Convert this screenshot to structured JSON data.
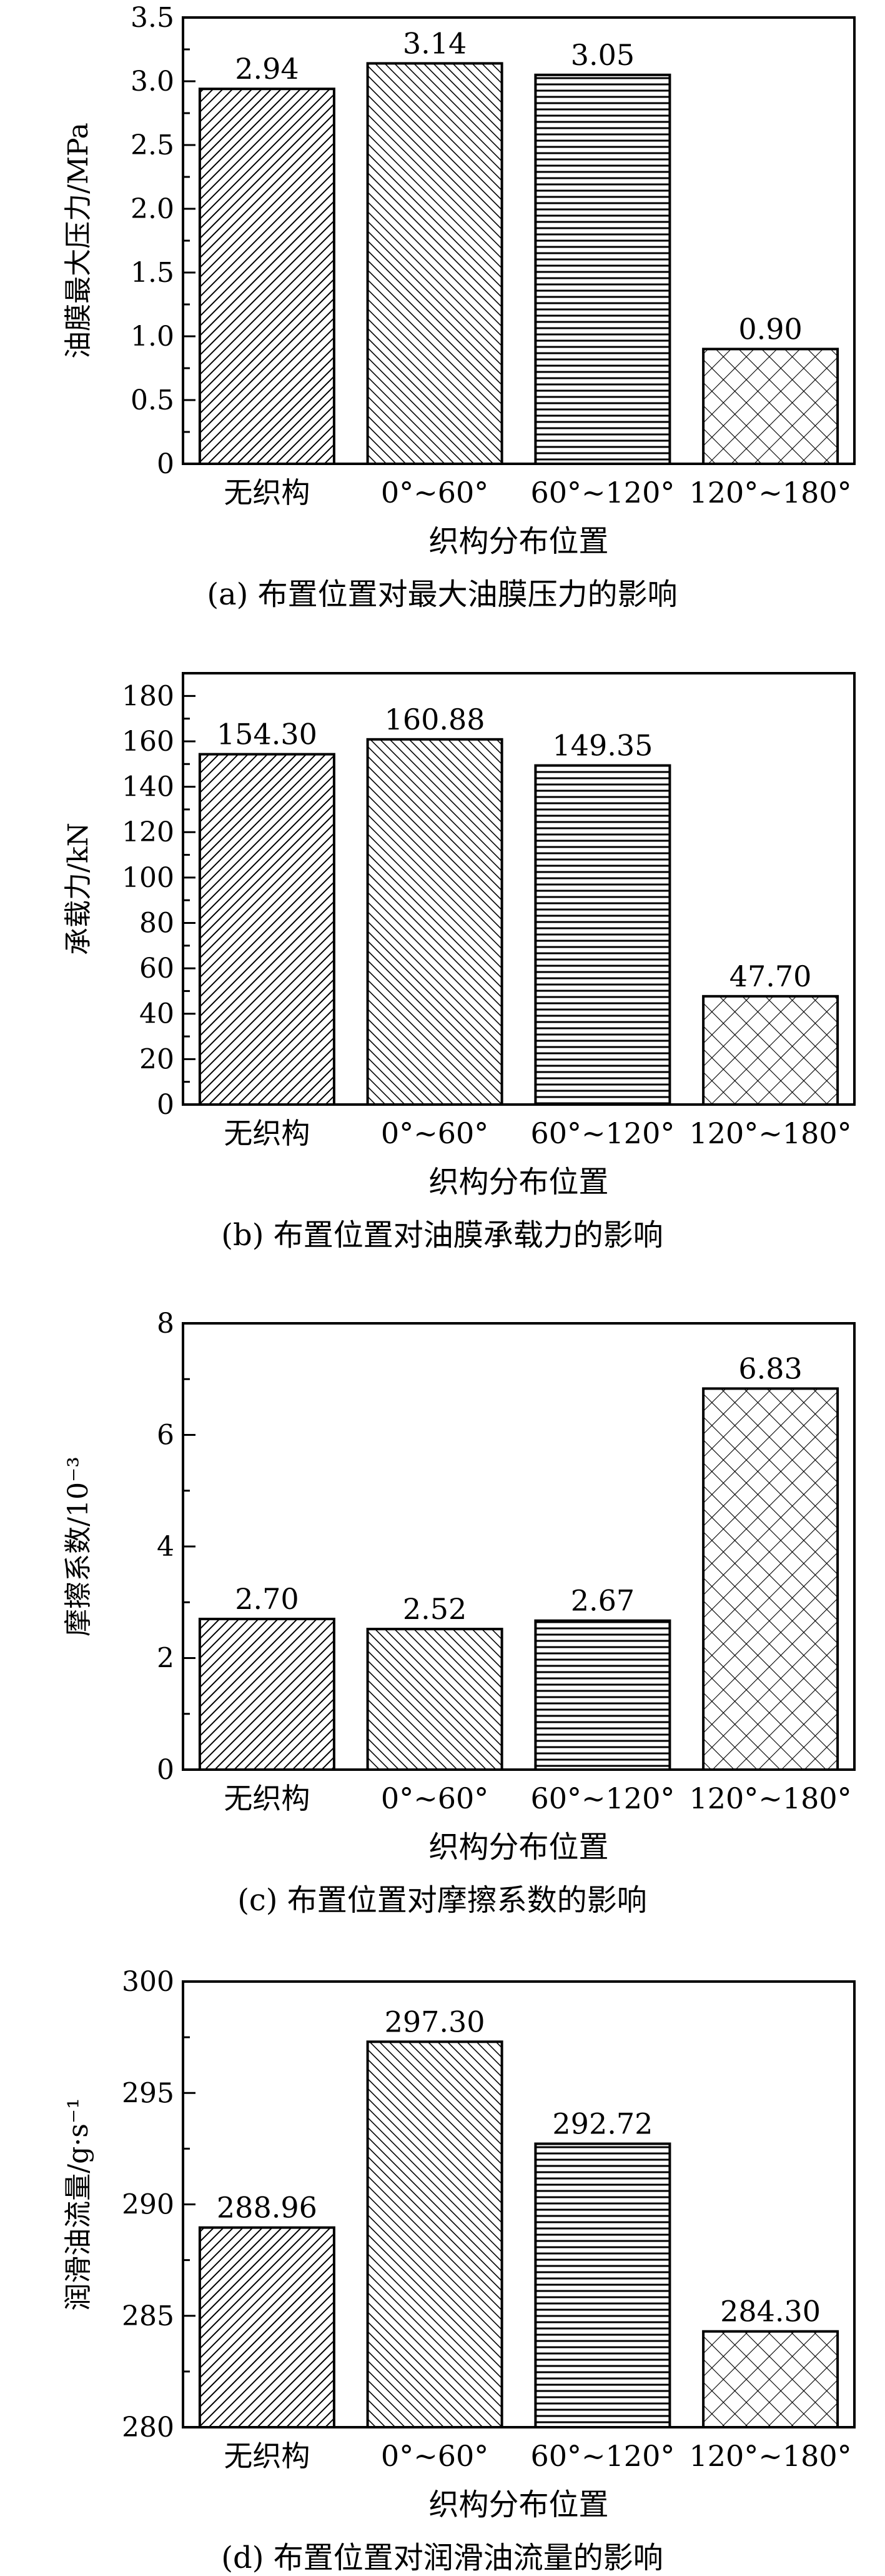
{
  "chart_data": [
    {
      "type": "bar",
      "categories": [
        "无织构",
        "0°~60°",
        "60°~120°",
        "120°~180°"
      ],
      "values": [
        2.94,
        3.14,
        3.05,
        0.9
      ],
      "value_labels": [
        "2.94",
        "3.14",
        "3.05",
        "0.90"
      ],
      "ylabel": "油膜最大压力/MPa",
      "xlabel": "织构分布位置",
      "caption": "(a) 布置位置对最大油膜压力的影响",
      "ylim": [
        0,
        3.5
      ],
      "yticks": [
        0,
        0.5,
        1.0,
        1.5,
        2.0,
        2.5,
        3.0,
        3.5
      ],
      "ytick_labels": [
        "0",
        "0.5",
        "1.0",
        "1.5",
        "2.0",
        "2.5",
        "3.0",
        "3.5"
      ],
      "bar_patterns": [
        "diag-right",
        "diag-left",
        "horizontal",
        "crosshatch"
      ],
      "grid": false,
      "legend": "none"
    },
    {
      "type": "bar",
      "categories": [
        "无织构",
        "0°~60°",
        "60°~120°",
        "120°~180°"
      ],
      "values": [
        154.3,
        160.88,
        149.35,
        47.7
      ],
      "value_labels": [
        "154.30",
        "160.88",
        "149.35",
        "47.70"
      ],
      "ylabel": "承载力/kN",
      "xlabel": "织构分布位置",
      "caption": "(b) 布置位置对油膜承载力的影响",
      "ylim": [
        0,
        190
      ],
      "yticks": [
        0,
        20,
        40,
        60,
        80,
        100,
        120,
        140,
        160,
        180
      ],
      "ytick_labels": [
        "0",
        "20",
        "40",
        "60",
        "80",
        "100",
        "120",
        "140",
        "160",
        "180"
      ],
      "bar_patterns": [
        "diag-right",
        "diag-left",
        "horizontal",
        "crosshatch"
      ],
      "grid": false,
      "legend": "none"
    },
    {
      "type": "bar",
      "categories": [
        "无织构",
        "0°~60°",
        "60°~120°",
        "120°~180°"
      ],
      "values": [
        2.7,
        2.52,
        2.67,
        6.83
      ],
      "value_labels": [
        "2.70",
        "2.52",
        "2.67",
        "6.83"
      ],
      "ylabel": "摩擦系数/10⁻³",
      "xlabel": "织构分布位置",
      "caption": "(c) 布置位置对摩擦系数的影响",
      "ylim": [
        0,
        8
      ],
      "yticks": [
        0,
        2,
        4,
        6,
        8
      ],
      "ytick_labels": [
        "0",
        "2",
        "4",
        "6",
        "8"
      ],
      "bar_patterns": [
        "diag-right",
        "diag-left",
        "horizontal",
        "crosshatch"
      ],
      "grid": false,
      "legend": "none"
    },
    {
      "type": "bar",
      "categories": [
        "无织构",
        "0°~60°",
        "60°~120°",
        "120°~180°"
      ],
      "values": [
        288.96,
        297.3,
        292.72,
        284.3
      ],
      "value_labels": [
        "288.96",
        "297.30",
        "292.72",
        "284.30"
      ],
      "ylabel": "润滑油流量/g·s⁻¹",
      "xlabel": "织构分布位置",
      "caption": "(d) 布置位置对润滑油流量的影响",
      "ylim": [
        280,
        300
      ],
      "yticks": [
        280,
        285,
        290,
        295,
        300
      ],
      "ytick_labels": [
        "280",
        "285",
        "290",
        "295",
        "300"
      ],
      "bar_patterns": [
        "diag-right",
        "diag-left",
        "horizontal",
        "crosshatch"
      ],
      "grid": false,
      "legend": "none"
    }
  ]
}
